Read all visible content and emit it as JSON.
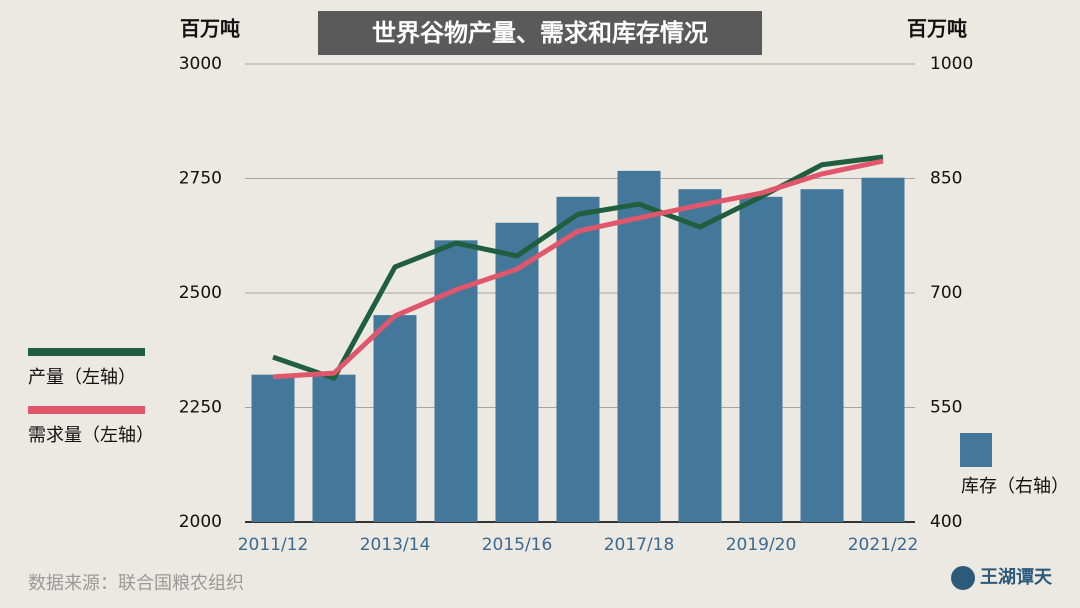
{
  "chart_data": {
    "type": "bar",
    "title": "世界谷物产量、需求和库存情况",
    "y_label": "百万吨",
    "y2_label": "百万吨",
    "source": "数据来源：联合国粮农组织",
    "logo": "王湖谭天",
    "categories": [
      "2011/12",
      null,
      "2013/14",
      null,
      "2015/16",
      null,
      "2017/18",
      null,
      "2019/20",
      null,
      "2021/22"
    ],
    "ylim": [
      2000,
      3000
    ],
    "yticks": [
      2000,
      2250,
      2500,
      2750,
      3000
    ],
    "y2lim": [
      400,
      1000
    ],
    "y2ticks": [
      400,
      550,
      700,
      850,
      1000
    ],
    "grid": true,
    "series": [
      {
        "name": "库存（右轴）",
        "type": "bar",
        "axis": "y2",
        "color": "#44789a",
        "values": [
          593,
          593,
          671,
          769,
          792,
          826,
          860,
          836,
          826,
          836,
          851
        ]
      },
      {
        "name": "产量（左轴）",
        "type": "line",
        "color": "#1f5e3e",
        "values": [
          2360,
          2314,
          2557,
          2609,
          2581,
          2672,
          2694,
          2644,
          2710,
          2780,
          2797
        ]
      },
      {
        "name": "需求量（左轴）",
        "type": "line",
        "color": "#e0566b",
        "values": [
          2317,
          2325,
          2450,
          2507,
          2552,
          2635,
          2664,
          2692,
          2718,
          2760,
          2788
        ]
      }
    ]
  }
}
